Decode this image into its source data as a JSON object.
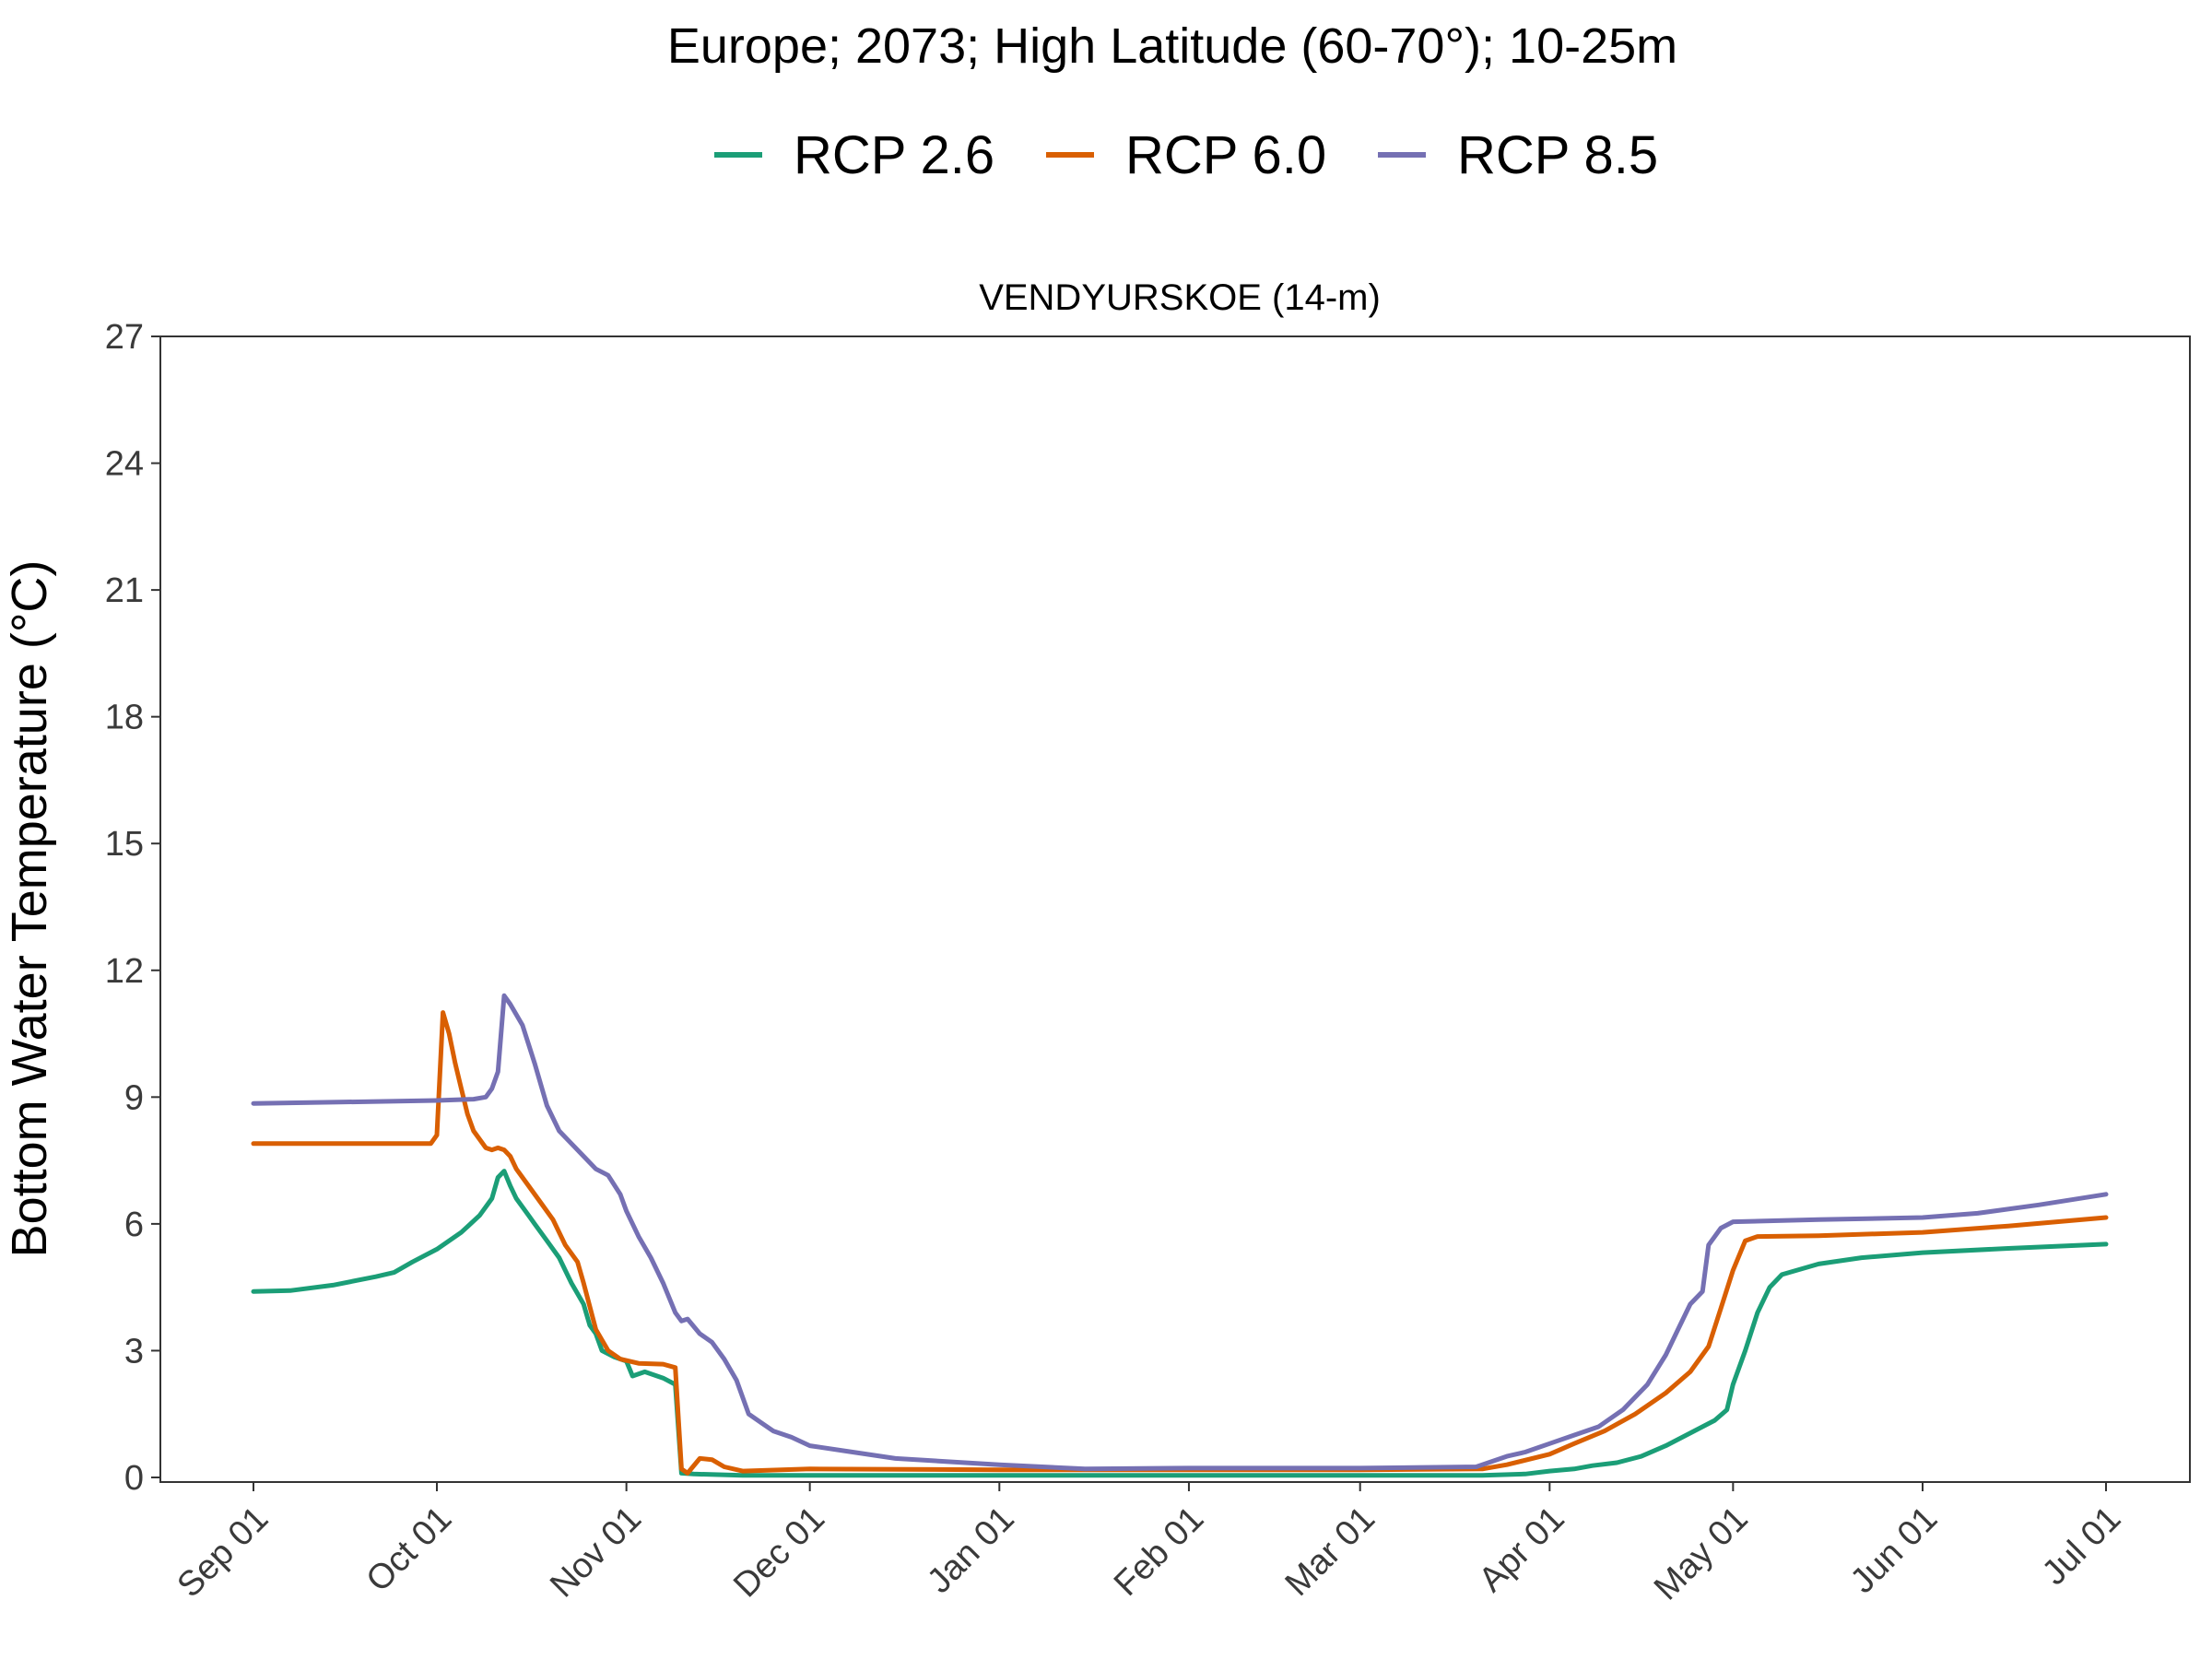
{
  "chart_data": {
    "type": "line",
    "title": "Europe;  2073;  High Latitude (60-70°);  10-25m",
    "panel_title": "VENDYURSKOE (14-m)",
    "xlabel": "",
    "ylabel": "Bottom Water Temperature (°C)",
    "ylim": [
      0,
      27
    ],
    "yticks": [
      0,
      3,
      6,
      9,
      12,
      15,
      18,
      21,
      24,
      27
    ],
    "xlim": [
      "Sep 01",
      "Jul 01"
    ],
    "xticks": [
      "Sep 01",
      "Oct 01",
      "Nov 01",
      "Dec 01",
      "Jan 01",
      "Feb 01",
      "Mar 01",
      "Apr 01",
      "May 01",
      "Jun 01",
      "Jul 01"
    ],
    "grid": false,
    "legend_position": "top",
    "series": [
      {
        "name": "RCP 2.6",
        "color": "#1b9e77",
        "points": [
          [
            "Sep 01",
            4.4
          ],
          [
            "Sep 07",
            4.42
          ],
          [
            "Sep 14",
            4.55
          ],
          [
            "Sep 21",
            4.75
          ],
          [
            "Sep 24",
            4.85
          ],
          [
            "Sep 27",
            5.1
          ],
          [
            "Oct 01",
            5.4
          ],
          [
            "Oct 05",
            5.8
          ],
          [
            "Oct 08",
            6.2
          ],
          [
            "Oct 10",
            6.6
          ],
          [
            "Oct 11",
            7.1
          ],
          [
            "Oct 12",
            7.25
          ],
          [
            "Oct 13",
            6.9
          ],
          [
            "Oct 14",
            6.6
          ],
          [
            "Oct 16",
            6.2
          ],
          [
            "Oct 17",
            6.0
          ],
          [
            "Oct 19",
            5.6
          ],
          [
            "Oct 21",
            5.2
          ],
          [
            "Oct 23",
            4.6
          ],
          [
            "Oct 25",
            4.1
          ],
          [
            "Oct 26",
            3.6
          ],
          [
            "Oct 27",
            3.4
          ],
          [
            "Oct 28",
            3.0
          ],
          [
            "Oct 30",
            2.85
          ],
          [
            "Nov 01",
            2.75
          ],
          [
            "Nov 02",
            2.4
          ],
          [
            "Nov 04",
            2.5
          ],
          [
            "Nov 07",
            2.35
          ],
          [
            "Nov 09",
            2.2
          ],
          [
            "Nov 10",
            0.1
          ],
          [
            "Nov 12",
            0.08
          ],
          [
            "Nov 20",
            0.05
          ],
          [
            "Dec 01",
            0.05
          ],
          [
            "Jan 01",
            0.05
          ],
          [
            "Feb 01",
            0.05
          ],
          [
            "Mar 01",
            0.05
          ],
          [
            "Mar 21",
            0.05
          ],
          [
            "Mar 28",
            0.08
          ],
          [
            "Apr 01",
            0.15
          ],
          [
            "Apr 05",
            0.2
          ],
          [
            "Apr 08",
            0.28
          ],
          [
            "Apr 12",
            0.35
          ],
          [
            "Apr 16",
            0.5
          ],
          [
            "Apr 20",
            0.75
          ],
          [
            "Apr 24",
            1.05
          ],
          [
            "Apr 28",
            1.35
          ],
          [
            "Apr 30",
            1.6
          ],
          [
            "May 01",
            2.2
          ],
          [
            "May 03",
            3.0
          ],
          [
            "May 05",
            3.9
          ],
          [
            "May 07",
            4.5
          ],
          [
            "May 09",
            4.8
          ],
          [
            "May 15",
            5.05
          ],
          [
            "May 22",
            5.2
          ],
          [
            "Jun 01",
            5.32
          ],
          [
            "Jun 15",
            5.42
          ],
          [
            "Jul 01",
            5.52
          ]
        ]
      },
      {
        "name": "RCP 6.0",
        "color": "#d95f02",
        "points": [
          [
            "Sep 01",
            7.9
          ],
          [
            "Sep 15",
            7.9
          ],
          [
            "Sep 30",
            7.9
          ],
          [
            "Oct 01",
            8.1
          ],
          [
            "Oct 02",
            11.0
          ],
          [
            "Oct 03",
            10.5
          ],
          [
            "Oct 04",
            9.8
          ],
          [
            "Oct 05",
            9.2
          ],
          [
            "Oct 06",
            8.6
          ],
          [
            "Oct 07",
            8.2
          ],
          [
            "Oct 09",
            7.8
          ],
          [
            "Oct 10",
            7.75
          ],
          [
            "Oct 11",
            7.8
          ],
          [
            "Oct 12",
            7.75
          ],
          [
            "Oct 13",
            7.6
          ],
          [
            "Oct 14",
            7.3
          ],
          [
            "Oct 16",
            6.9
          ],
          [
            "Oct 18",
            6.5
          ],
          [
            "Oct 20",
            6.1
          ],
          [
            "Oct 22",
            5.5
          ],
          [
            "Oct 24",
            5.1
          ],
          [
            "Oct 25",
            4.6
          ],
          [
            "Oct 27",
            3.5
          ],
          [
            "Oct 29",
            3.0
          ],
          [
            "Oct 31",
            2.8
          ],
          [
            "Nov 03",
            2.7
          ],
          [
            "Nov 07",
            2.68
          ],
          [
            "Nov 09",
            2.6
          ],
          [
            "Nov 10",
            0.2
          ],
          [
            "Nov 11",
            0.1
          ],
          [
            "Nov 13",
            0.45
          ],
          [
            "Nov 15",
            0.42
          ],
          [
            "Nov 17",
            0.25
          ],
          [
            "Nov 20",
            0.15
          ],
          [
            "Dec 01",
            0.2
          ],
          [
            "Jan 01",
            0.18
          ],
          [
            "Feb 01",
            0.18
          ],
          [
            "Mar 01",
            0.18
          ],
          [
            "Mar 21",
            0.2
          ],
          [
            "Mar 25",
            0.3
          ],
          [
            "Apr 01",
            0.55
          ],
          [
            "Apr 05",
            0.8
          ],
          [
            "Apr 10",
            1.1
          ],
          [
            "Apr 15",
            1.5
          ],
          [
            "Apr 20",
            2.0
          ],
          [
            "Apr 24",
            2.5
          ],
          [
            "Apr 27",
            3.1
          ],
          [
            "Apr 29",
            4.0
          ],
          [
            "May 01",
            4.9
          ],
          [
            "May 03",
            5.6
          ],
          [
            "May 05",
            5.7
          ],
          [
            "May 15",
            5.72
          ],
          [
            "Jun 01",
            5.8
          ],
          [
            "Jun 15",
            5.95
          ],
          [
            "Jul 01",
            6.15
          ]
        ]
      },
      {
        "name": "RCP 8.5",
        "color": "#7570b3",
        "points": [
          [
            "Sep 01",
            8.85
          ],
          [
            "Sep 15",
            8.88
          ],
          [
            "Oct 01",
            8.92
          ],
          [
            "Oct 07",
            8.95
          ],
          [
            "Oct 09",
            9.0
          ],
          [
            "Oct 10",
            9.2
          ],
          [
            "Oct 11",
            9.6
          ],
          [
            "Oct 12",
            11.4
          ],
          [
            "Oct 13",
            11.2
          ],
          [
            "Oct 15",
            10.7
          ],
          [
            "Oct 17",
            9.8
          ],
          [
            "Oct 19",
            8.8
          ],
          [
            "Oct 21",
            8.2
          ],
          [
            "Oct 23",
            7.9
          ],
          [
            "Oct 25",
            7.6
          ],
          [
            "Oct 27",
            7.3
          ],
          [
            "Oct 29",
            7.15
          ],
          [
            "Oct 31",
            6.7
          ],
          [
            "Nov 01",
            6.3
          ],
          [
            "Nov 03",
            5.7
          ],
          [
            "Nov 05",
            5.2
          ],
          [
            "Nov 07",
            4.6
          ],
          [
            "Nov 09",
            3.9
          ],
          [
            "Nov 10",
            3.7
          ],
          [
            "Nov 11",
            3.75
          ],
          [
            "Nov 13",
            3.4
          ],
          [
            "Nov 15",
            3.2
          ],
          [
            "Nov 17",
            2.8
          ],
          [
            "Nov 19",
            2.3
          ],
          [
            "Nov 21",
            1.5
          ],
          [
            "Nov 23",
            1.3
          ],
          [
            "Nov 25",
            1.1
          ],
          [
            "Nov 28",
            0.95
          ],
          [
            "Dec 01",
            0.75
          ],
          [
            "Dec 08",
            0.6
          ],
          [
            "Dec 15",
            0.45
          ],
          [
            "Jan 01",
            0.3
          ],
          [
            "Jan 15",
            0.2
          ],
          [
            "Feb 01",
            0.22
          ],
          [
            "Mar 01",
            0.22
          ],
          [
            "Mar 20",
            0.25
          ],
          [
            "Mar 25",
            0.5
          ],
          [
            "Mar 28",
            0.6
          ],
          [
            "Apr 01",
            0.8
          ],
          [
            "Apr 05",
            1.0
          ],
          [
            "Apr 09",
            1.2
          ],
          [
            "Apr 13",
            1.6
          ],
          [
            "Apr 17",
            2.2
          ],
          [
            "Apr 20",
            2.9
          ],
          [
            "Apr 22",
            3.5
          ],
          [
            "Apr 24",
            4.1
          ],
          [
            "Apr 26",
            4.4
          ],
          [
            "Apr 27",
            5.5
          ],
          [
            "Apr 29",
            5.9
          ],
          [
            "May 01",
            6.05
          ],
          [
            "May 15",
            6.1
          ],
          [
            "Jun 01",
            6.15
          ],
          [
            "Jun 10",
            6.25
          ],
          [
            "Jun 20",
            6.45
          ],
          [
            "Jul 01",
            6.7
          ]
        ]
      }
    ]
  }
}
